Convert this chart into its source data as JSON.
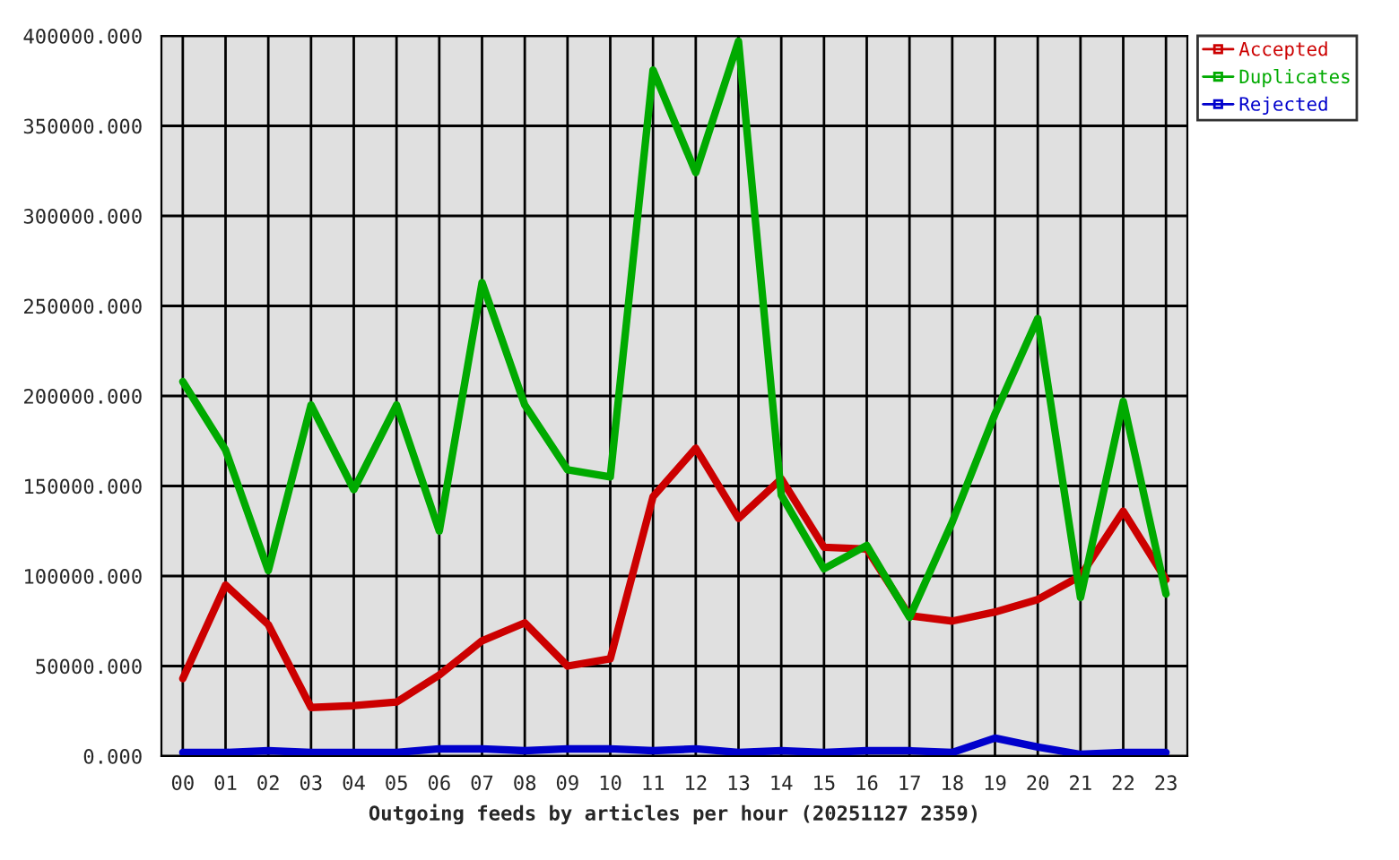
{
  "chart_data": {
    "type": "line",
    "xlabel": "Outgoing feeds by articles per hour (20251127 2359)",
    "categories": [
      "00",
      "01",
      "02",
      "03",
      "04",
      "05",
      "06",
      "07",
      "08",
      "09",
      "10",
      "11",
      "12",
      "13",
      "14",
      "15",
      "16",
      "17",
      "18",
      "19",
      "20",
      "21",
      "22",
      "23"
    ],
    "series": [
      {
        "name": "Accepted",
        "color": "#cc0000",
        "values": [
          43000,
          95000,
          73000,
          27000,
          28000,
          30000,
          45000,
          64000,
          74000,
          50000,
          54000,
          144000,
          171000,
          132000,
          154000,
          116000,
          115000,
          78000,
          75000,
          80000,
          87000,
          100000,
          136000,
          98000
        ]
      },
      {
        "name": "Duplicates",
        "color": "#00aa00",
        "values": [
          208000,
          170000,
          103000,
          195000,
          148000,
          195000,
          125000,
          263000,
          195000,
          159000,
          155000,
          381000,
          324000,
          397000,
          145000,
          104000,
          117000,
          77000,
          130000,
          190000,
          243000,
          88000,
          197000,
          90000
        ]
      },
      {
        "name": "Rejected",
        "color": "#0000cc",
        "values": [
          2000,
          2000,
          3000,
          2000,
          2000,
          2000,
          4000,
          4000,
          3000,
          4000,
          4000,
          3000,
          4000,
          2000,
          3000,
          2000,
          3000,
          3000,
          2000,
          10000,
          5000,
          1000,
          2000,
          2000
        ]
      }
    ],
    "ylim": [
      0,
      400000
    ],
    "yticks": [
      {
        "value": 0,
        "label": "0.000"
      },
      {
        "value": 50000,
        "label": "50000.000"
      },
      {
        "value": 100000,
        "label": "100000.000"
      },
      {
        "value": 150000,
        "label": "150000.000"
      },
      {
        "value": 200000,
        "label": "200000.000"
      },
      {
        "value": 250000,
        "label": "250000.000"
      },
      {
        "value": 300000,
        "label": "300000.000"
      },
      {
        "value": 350000,
        "label": "350000.000"
      },
      {
        "value": 400000,
        "label": "400000.000"
      }
    ],
    "grid": true,
    "legend": "top right",
    "marker": "none",
    "line_style": "solid"
  }
}
